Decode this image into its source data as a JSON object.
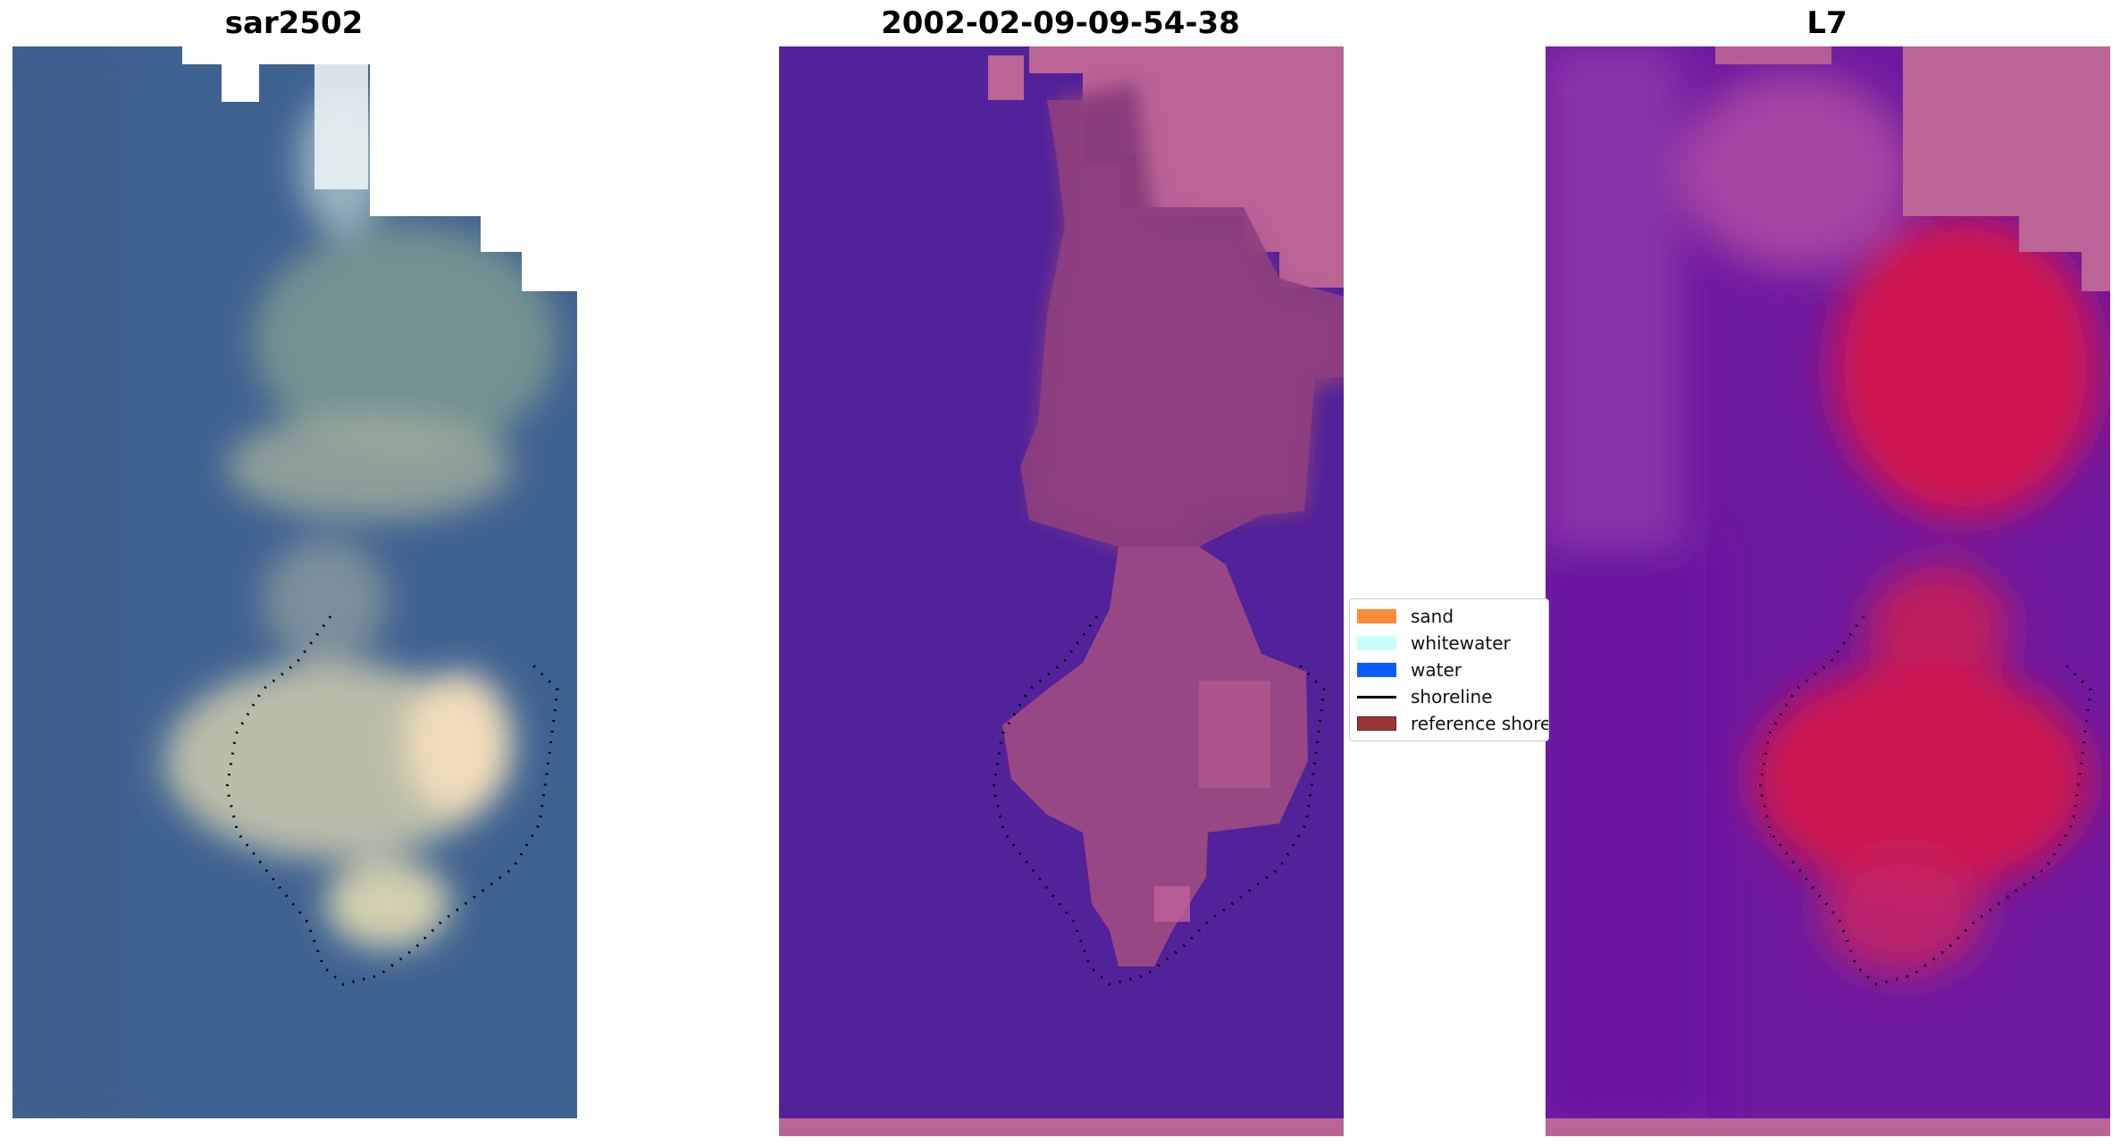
{
  "panels": [
    {
      "title": "sar2502"
    },
    {
      "title": "2002-02-09-09-54-38"
    },
    {
      "title": "L7"
    }
  ],
  "legend": {
    "items": [
      {
        "label": "sand",
        "color": "#fe8b3c"
      },
      {
        "label": "whitewater",
        "color": "#c8fffd"
      },
      {
        "label": "water",
        "color": "#0a5bfd"
      },
      {
        "label": "shoreline",
        "color": "#000000"
      },
      {
        "label": "reference shoreline",
        "color": "#9b3536"
      }
    ]
  }
}
